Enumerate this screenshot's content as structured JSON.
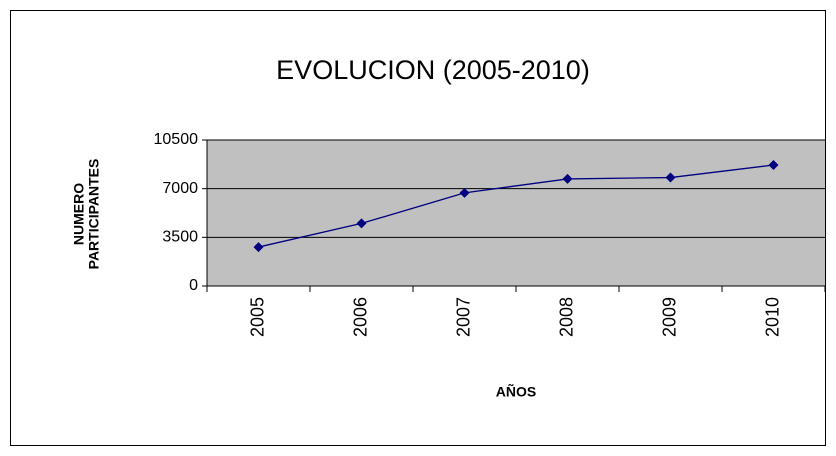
{
  "chart_data": {
    "type": "line",
    "title": "EVOLUCION (2005-2010)",
    "xlabel": "AÑOS",
    "ylabel": [
      "NUMERO",
      "PARTICIPANTES"
    ],
    "categories": [
      "2005",
      "2006",
      "2007",
      "2008",
      "2009",
      "2010"
    ],
    "series": [
      {
        "name": "PARTICIPANTES",
        "color": "#000080",
        "values": [
          2800,
          4500,
          6700,
          7700,
          7800,
          8700
        ]
      }
    ],
    "ylim": [
      0,
      10500
    ],
    "yticks": [
      0,
      3500,
      7000,
      10500
    ],
    "grid": true,
    "plot_background": "#c0c0c0"
  }
}
